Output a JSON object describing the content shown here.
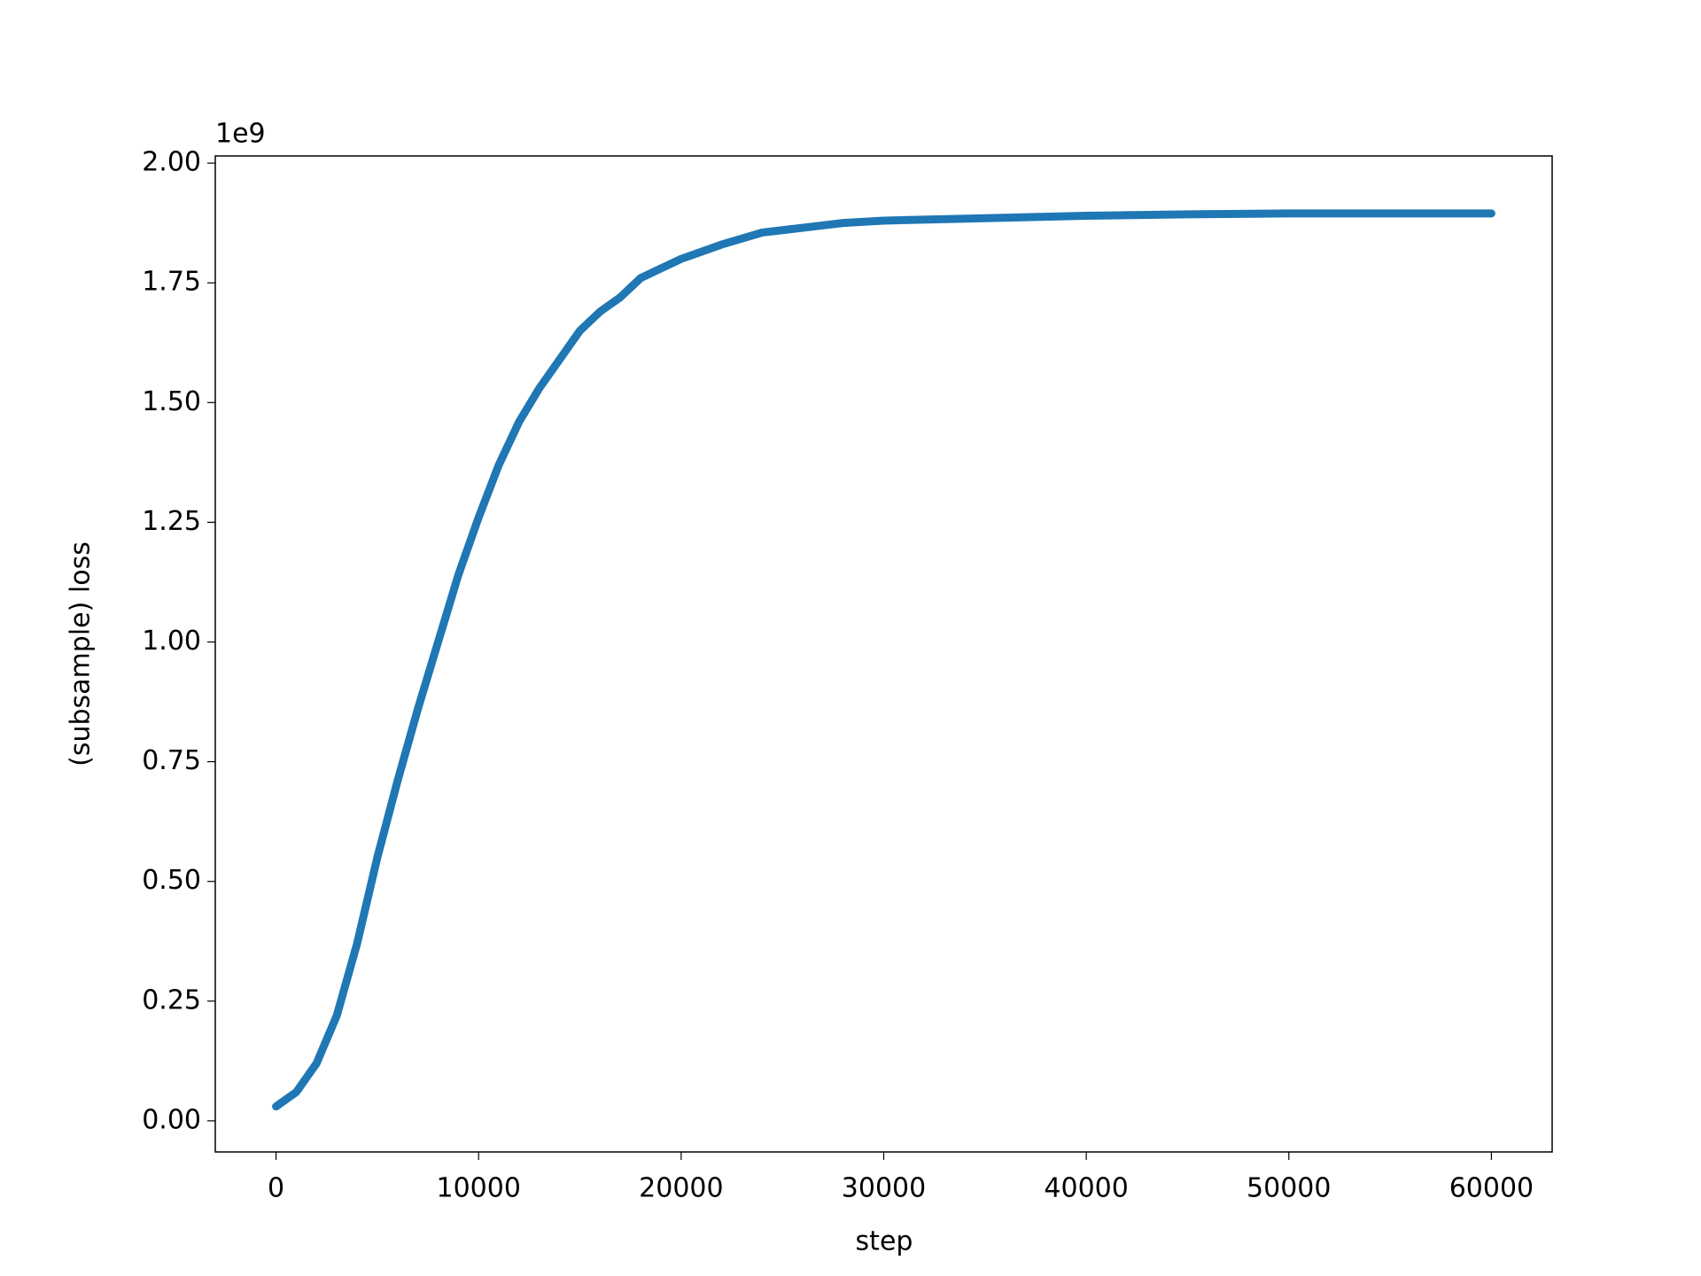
{
  "chart_data": {
    "type": "line",
    "x_label": "step",
    "y_label": "(subsample) loss",
    "y_offset_text": "1e9",
    "x": [
      0,
      1000,
      2000,
      3000,
      4000,
      5000,
      6000,
      7000,
      8000,
      9000,
      10000,
      11000,
      12000,
      13000,
      14000,
      15000,
      16000,
      17000,
      18000,
      19000,
      20000,
      22000,
      24000,
      26000,
      28000,
      30000,
      35000,
      40000,
      45000,
      50000,
      55000,
      60000
    ],
    "series": [
      {
        "color": "#1f77b4",
        "values": [
          0.03,
          0.06,
          0.12,
          0.22,
          0.37,
          0.55,
          0.71,
          0.86,
          1.0,
          1.14,
          1.26,
          1.37,
          1.46,
          1.53,
          1.59,
          1.65,
          1.69,
          1.72,
          1.76,
          1.78,
          1.8,
          1.83,
          1.855,
          1.865,
          1.875,
          1.88,
          1.885,
          1.89,
          1.893,
          1.895,
          1.895,
          1.895
        ]
      }
    ],
    "xlim": [
      -3000,
      63000
    ],
    "ylim": [
      -0.065,
      2.015
    ],
    "xticks": [
      0,
      10000,
      20000,
      30000,
      40000,
      50000,
      60000
    ],
    "yticks": [
      {
        "value": 0,
        "label": "0.00"
      },
      {
        "value": 0.25,
        "label": "0.25"
      },
      {
        "value": 0.5,
        "label": "0.50"
      },
      {
        "value": 0.75,
        "label": "0.75"
      },
      {
        "value": 1,
        "label": "1.00"
      },
      {
        "value": 1.25,
        "label": "1.25"
      },
      {
        "value": 1.5,
        "label": "1.50"
      },
      {
        "value": 1.75,
        "label": "1.75"
      },
      {
        "value": 2,
        "label": "2.00"
      }
    ],
    "grid": false
  }
}
